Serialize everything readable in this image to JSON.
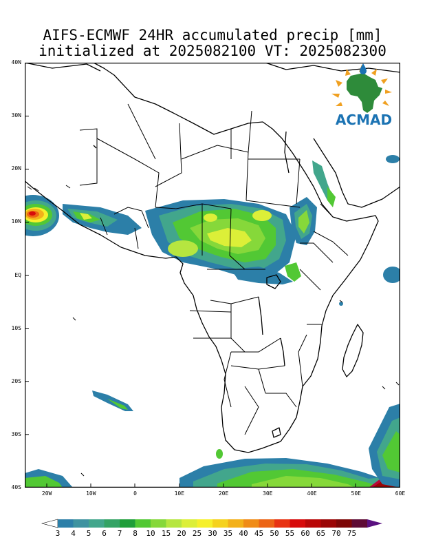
{
  "title": {
    "line1": "AIFS-ECMWF 24HR accumulated precip [mm]",
    "line2": "initialized at 2025082100 VT: 2025082300"
  },
  "map": {
    "lon_range": [
      -25,
      60
    ],
    "lat_range": [
      -40,
      40
    ],
    "lat_labels": [
      "40N",
      "30N",
      "20N",
      "10N",
      "EQ",
      "10S",
      "20S",
      "30S",
      "40S"
    ],
    "lon_labels": [
      "20W",
      "10W",
      "0",
      "10E",
      "20E",
      "30E",
      "40E",
      "50E",
      "60E"
    ]
  },
  "logo": {
    "text": "ACMAD",
    "text_color": "#1b73b3",
    "continent_color": "#2e8b3a",
    "ray_color": "#f0a020",
    "drop_color": "#1b73b3"
  },
  "colorbar": {
    "labels": [
      "3",
      "4",
      "5",
      "6",
      "7",
      "8",
      "10",
      "15",
      "20",
      "25",
      "30",
      "35",
      "40",
      "45",
      "50",
      "55",
      "60",
      "65",
      "70",
      "75"
    ],
    "colors": [
      "#ffffff",
      "#2c7fa8",
      "#3e93a0",
      "#42a68c",
      "#34a365",
      "#1f9e3a",
      "#52c834",
      "#86d83a",
      "#b6e640",
      "#dcef38",
      "#f6f02c",
      "#f5d21e",
      "#f3b11a",
      "#f08c17",
      "#ec6415",
      "#e83312",
      "#d70b0b",
      "#b90707",
      "#9b0606",
      "#7d0707",
      "#5e0b35",
      "#5a1180"
    ]
  }
}
